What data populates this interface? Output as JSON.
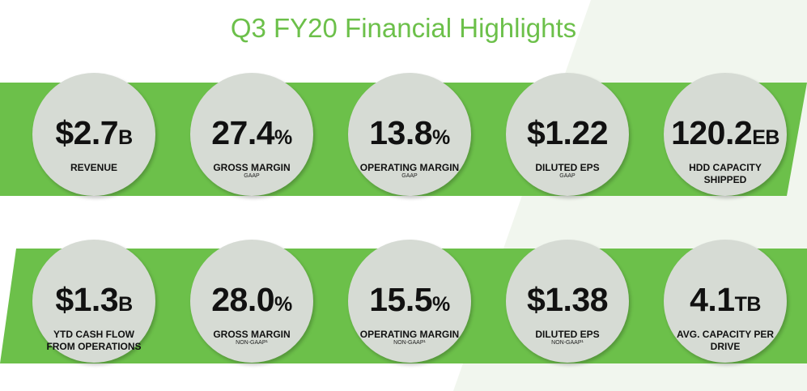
{
  "title": "Q3 FY20 Financial Highlights",
  "colors": {
    "accent_green": "#6cc04a",
    "circle_fill": "#d6dbd4",
    "wedge": "#eef4ea"
  },
  "rows": [
    [
      {
        "value": "$2.7",
        "unit": "B",
        "label": "REVENUE",
        "sub": ""
      },
      {
        "value": "27.4",
        "unit": "%",
        "label": "GROSS MARGIN",
        "sub": "GAAP"
      },
      {
        "value": "13.8",
        "unit": "%",
        "label": "OPERATING MARGIN",
        "sub": "GAAP"
      },
      {
        "value": "$1.22",
        "unit": "",
        "label": "DILUTED EPS",
        "sub": "GAAP"
      },
      {
        "value": "120.2",
        "unit": "EB",
        "label": "HDD CAPACITY SHIPPED",
        "sub": ""
      }
    ],
    [
      {
        "value": "$1.3",
        "unit": "B",
        "label": "YTD CASH FLOW FROM OPERATIONS",
        "sub": ""
      },
      {
        "value": "28.0",
        "unit": "%",
        "label": "GROSS MARGIN",
        "sub": "NON-GAAP¹"
      },
      {
        "value": "15.5",
        "unit": "%",
        "label": "OPERATING MARGIN",
        "sub": "NON-GAAP¹"
      },
      {
        "value": "$1.38",
        "unit": "",
        "label": "DILUTED EPS",
        "sub": "NON-GAAP¹"
      },
      {
        "value": "4.1",
        "unit": "TB",
        "label": "AVG. CAPACITY PER DRIVE",
        "sub": ""
      }
    ]
  ]
}
